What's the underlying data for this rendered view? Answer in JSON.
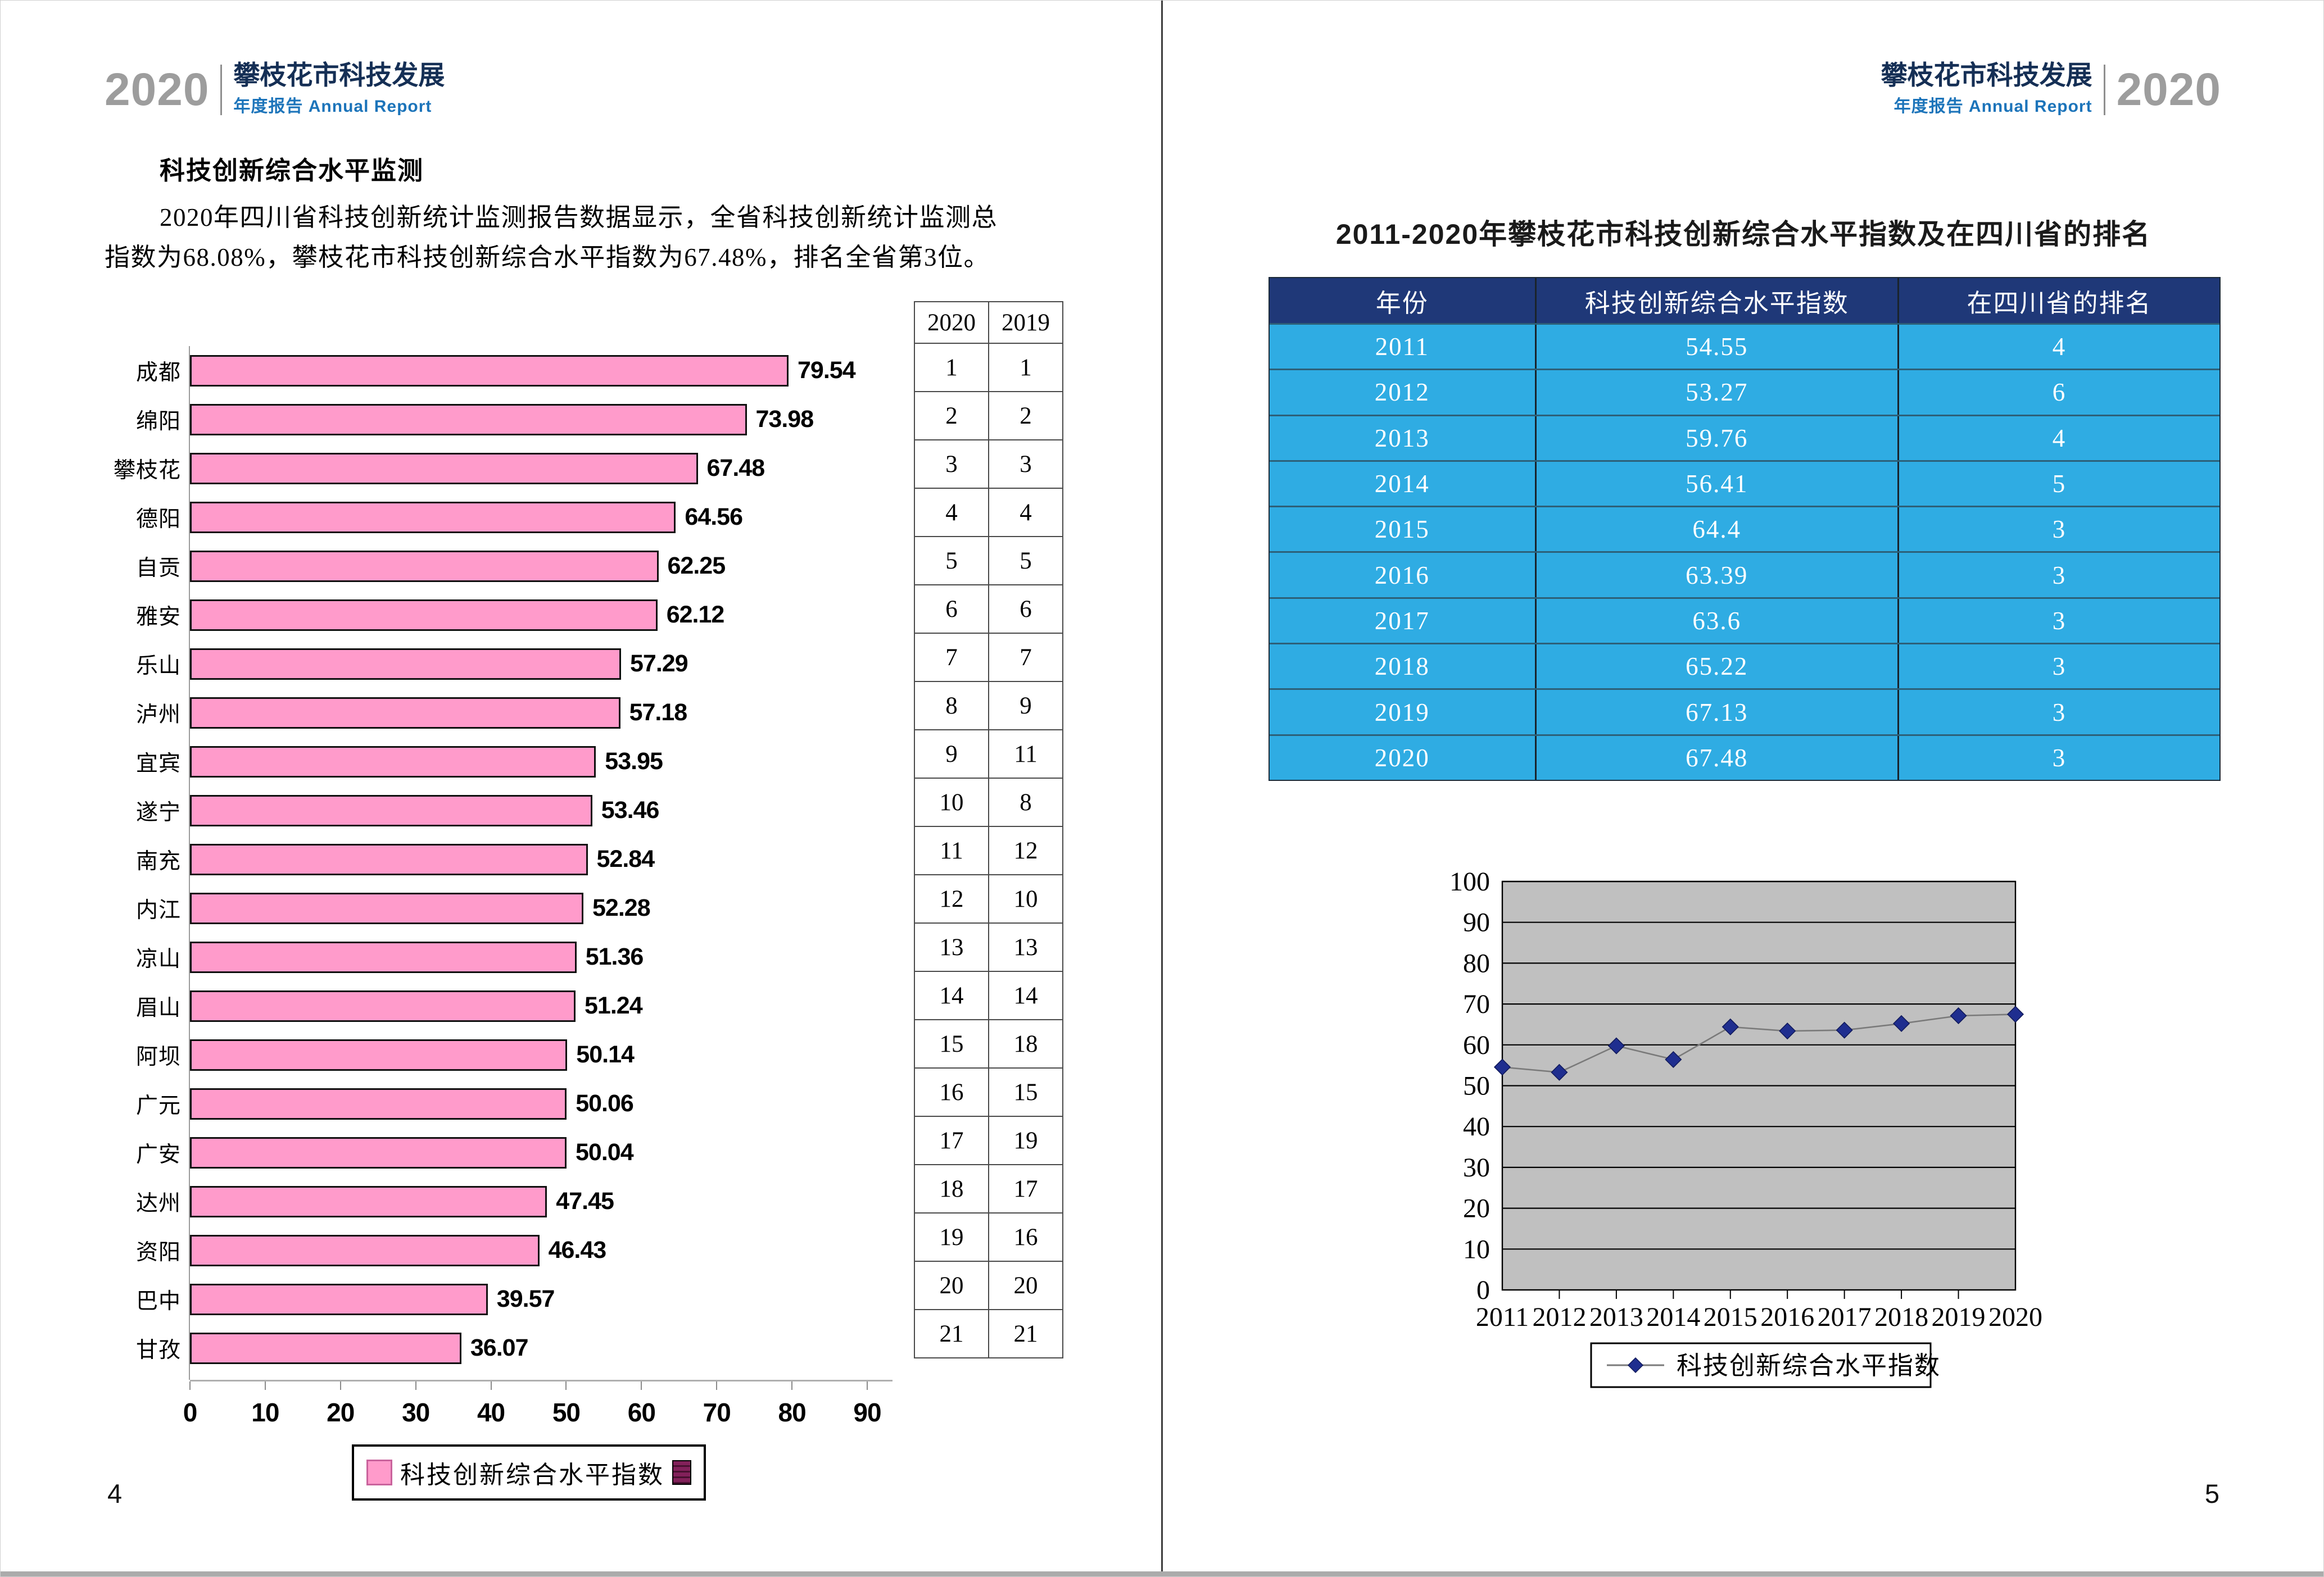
{
  "page_left": {
    "header": {
      "year": "2020",
      "title_cn": "攀枝花市科技发展",
      "subtitle": "年度报告 Annual Report"
    },
    "section_title": "科技创新综合水平监测",
    "paragraph_line1": "2020年四川省科技创新统计监测报告数据显示，全省科技创新统计监测总",
    "paragraph_line2": "指数为68.08%，攀枝花市科技创新综合水平指数为67.48%，排名全省第3位。",
    "ranking_table": {
      "headers": [
        "2020",
        "2019"
      ],
      "rows": [
        [
          "1",
          "1"
        ],
        [
          "2",
          "2"
        ],
        [
          "3",
          "3"
        ],
        [
          "4",
          "4"
        ],
        [
          "5",
          "5"
        ],
        [
          "6",
          "6"
        ],
        [
          "7",
          "7"
        ],
        [
          "8",
          "9"
        ],
        [
          "9",
          "11"
        ],
        [
          "10",
          "8"
        ],
        [
          "11",
          "12"
        ],
        [
          "12",
          "10"
        ],
        [
          "13",
          "13"
        ],
        [
          "14",
          "14"
        ],
        [
          "15",
          "18"
        ],
        [
          "16",
          "15"
        ],
        [
          "17",
          "19"
        ],
        [
          "18",
          "17"
        ],
        [
          "19",
          "16"
        ],
        [
          "20",
          "20"
        ],
        [
          "21",
          "21"
        ]
      ]
    },
    "page_number": "4"
  },
  "page_right": {
    "header": {
      "year": "2020",
      "title_cn": "攀枝花市科技发展",
      "subtitle": "年度报告 Annual Report"
    },
    "table_title": "2011-2020年攀枝花市科技创新综合水平指数及在四川省的排名",
    "table": {
      "headers": [
        "年份",
        "科技创新综合水平指数",
        "在四川省的排名"
      ],
      "rows": [
        [
          "2011",
          "54.55",
          "4"
        ],
        [
          "2012",
          "53.27",
          "6"
        ],
        [
          "2013",
          "59.76",
          "4"
        ],
        [
          "2014",
          "56.41",
          "5"
        ],
        [
          "2015",
          "64.4",
          "3"
        ],
        [
          "2016",
          "63.39",
          "3"
        ],
        [
          "2017",
          "63.6",
          "3"
        ],
        [
          "2018",
          "65.22",
          "3"
        ],
        [
          "2019",
          "67.13",
          "3"
        ],
        [
          "2020",
          "67.48",
          "3"
        ]
      ]
    },
    "page_number": "5"
  },
  "colors": {
    "bar_pink": "#FF9BCB",
    "bar_border": "#101010",
    "legend_maroon": "#82215A",
    "table_header_bg": "#1F3878",
    "table_row_bg": "#2FACE3",
    "header_year_gray": "#9D9D9D",
    "header_title_navy": "#152F55",
    "header_subtitle_blue": "#1C74BA",
    "line_plot_bg": "#C0C0C0",
    "line_marker_navy": "#1F2E8F",
    "line_series_gray": "#7A7A7A"
  },
  "chart_data": [
    {
      "type": "bar",
      "orientation": "horizontal",
      "title": "",
      "categories": [
        "成都",
        "绵阳",
        "攀枝花",
        "德阳",
        "自贡",
        "雅安",
        "乐山",
        "泸州",
        "宜宾",
        "遂宁",
        "南充",
        "内江",
        "凉山",
        "眉山",
        "阿坝",
        "广元",
        "广安",
        "达州",
        "资阳",
        "巴中",
        "甘孜"
      ],
      "values": [
        79.54,
        73.98,
        67.48,
        64.56,
        62.25,
        62.12,
        57.29,
        57.18,
        53.95,
        53.46,
        52.84,
        52.28,
        51.36,
        51.24,
        50.14,
        50.06,
        50.04,
        47.45,
        46.43,
        39.57,
        36.07
      ],
      "xlim": [
        0,
        90
      ],
      "x_ticks": [
        0,
        10,
        20,
        30,
        40,
        50,
        60,
        70,
        80,
        90
      ],
      "legend_label": "科技创新综合水平指数",
      "legend_position": "bottom",
      "value_labels": true,
      "grid": "off"
    },
    {
      "type": "line",
      "x": [
        "2011",
        "2012",
        "2013",
        "2014",
        "2015",
        "2016",
        "2017",
        "2018",
        "2019",
        "2020"
      ],
      "series": [
        {
          "name": "科技创新综合水平指数",
          "values": [
            54.55,
            53.27,
            59.76,
            56.41,
            64.4,
            63.39,
            63.6,
            65.22,
            67.13,
            67.48
          ]
        }
      ],
      "ylim": [
        0,
        100
      ],
      "y_ticks": [
        0,
        10,
        20,
        30,
        40,
        50,
        60,
        70,
        80,
        90,
        100
      ],
      "grid": "horizontal",
      "marker": "diamond",
      "legend_position": "bottom"
    }
  ]
}
